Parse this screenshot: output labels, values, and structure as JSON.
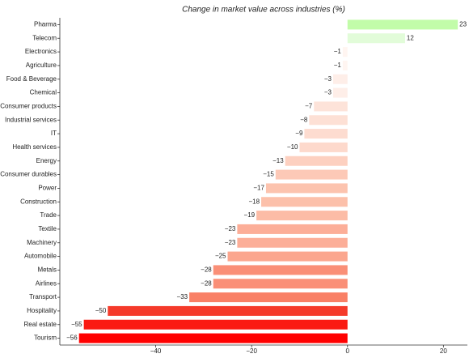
{
  "chart_data": {
    "type": "barh",
    "title": "Change in market value across industries (%)",
    "categories": [
      "Pharma",
      "Telecom",
      "Electronics",
      "Agriculture",
      "Food & Beverage",
      "Chemical",
      "Consumer products",
      "Industrial services",
      "IT",
      "Health services",
      "Energy",
      "Consumer durables",
      "Power",
      "Construction",
      "Trade",
      "Textile",
      "Machinery",
      "Automobile",
      "Metals",
      "Airlines",
      "Transport",
      "Hospitality",
      "Real estate",
      "Tourism"
    ],
    "values": [
      23,
      12,
      -1,
      -1,
      -3,
      -3,
      -7,
      -8,
      -9,
      -10,
      -13,
      -15,
      -17,
      -18,
      -19,
      -23,
      -23,
      -25,
      -28,
      -28,
      -33,
      -50,
      -55,
      -56
    ],
    "value_labels": [
      "23",
      "12",
      "−1",
      "−1",
      "−3",
      "−3",
      "−7",
      "−8",
      "−9",
      "−10",
      "−13",
      "−15",
      "−17",
      "−18",
      "−19",
      "−23",
      "−23",
      "−25",
      "−28",
      "−28",
      "−33",
      "−50",
      "−55",
      "−56"
    ],
    "colors": [
      "#c2fca9",
      "#e2fcd9",
      "#fff5f1",
      "#fff5f1",
      "#feeee8",
      "#feeee8",
      "#fde3d9",
      "#fde0d5",
      "#fddcd0",
      "#fdd9cc",
      "#fdd0c0",
      "#fdc9b7",
      "#fcc3ae",
      "#fcc0aa",
      "#fcbca6",
      "#fcae98",
      "#fcae98",
      "#fba68e",
      "#fa8f77",
      "#fa8f77",
      "#f98066",
      "#f53a2a",
      "#fa1a12",
      "#ff0000"
    ],
    "xlim": [
      -60,
      25
    ],
    "xticks": [
      {
        "value": -40,
        "label": "−40"
      },
      {
        "value": -20,
        "label": "−20"
      },
      0,
      20
    ]
  }
}
